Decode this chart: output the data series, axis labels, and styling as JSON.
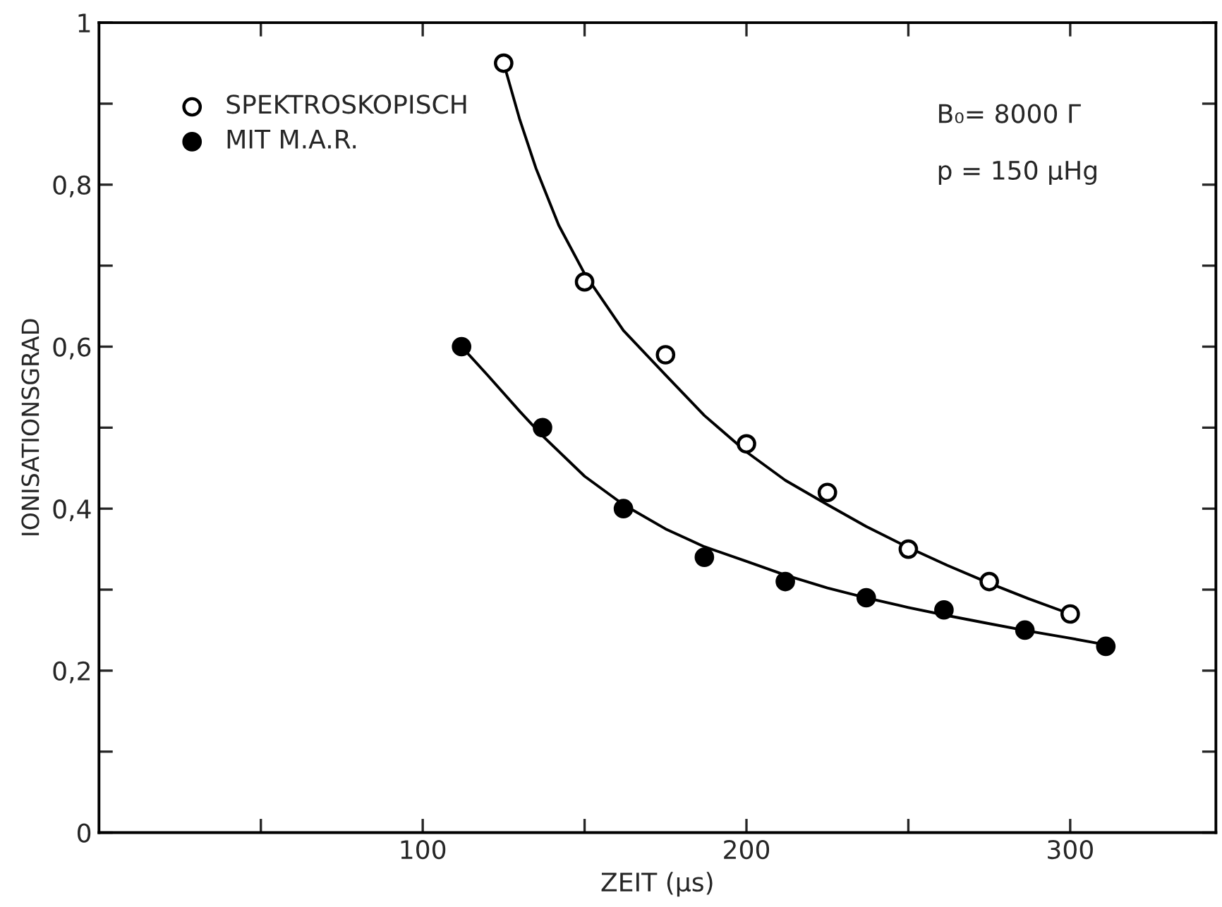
{
  "chart_data": {
    "type": "scatter",
    "xlabel": "ZEIT (μs)",
    "ylabel": "IONISATIONSGRAD",
    "xlim": [
      0,
      345
    ],
    "ylim": [
      0,
      1
    ],
    "xticks": [
      {
        "value": 50,
        "label": null
      },
      100,
      {
        "value": 150,
        "label": null
      },
      200,
      {
        "value": 250,
        "label": null
      },
      300
    ],
    "yticks": [
      {
        "value": 0,
        "label": "0"
      },
      {
        "value": 0.1,
        "label": null
      },
      {
        "value": 0.2,
        "label": "0,2"
      },
      {
        "value": 0.3,
        "label": null
      },
      {
        "value": 0.4,
        "label": "0,4"
      },
      {
        "value": 0.5,
        "label": null
      },
      {
        "value": 0.6,
        "label": "0,6"
      },
      {
        "value": 0.7,
        "label": null
      },
      {
        "value": 0.8,
        "label": "0,8"
      },
      {
        "value": 0.9,
        "label": null
      },
      {
        "value": 1,
        "label": "1"
      }
    ],
    "grid": false,
    "legend": "top left",
    "marker": "circle",
    "annotations": [
      "B₀= 8000 Γ",
      "p = 150 μHg"
    ],
    "series": [
      {
        "name": "SPEKTROSKOPISCH",
        "color": "#ffffff",
        "x": [
          125,
          150,
          175,
          200,
          225,
          250,
          275,
          300
        ],
        "values": [
          0.95,
          0.68,
          0.59,
          0.48,
          0.42,
          0.35,
          0.31,
          0.27
        ]
      },
      {
        "name": "MIT M.A.R.",
        "color": "#000000",
        "x": [
          112,
          137,
          162,
          187,
          212,
          237,
          261,
          286,
          311
        ],
        "values": [
          0.6,
          0.5,
          0.4,
          0.34,
          0.31,
          0.29,
          0.275,
          0.25,
          0.23
        ]
      },
      {
        "type": "line",
        "marker": "none",
        "color": "#000000",
        "x": [
          125,
          130,
          135,
          142,
          150,
          162,
          175,
          187,
          200,
          212,
          225,
          237,
          250,
          262,
          275,
          287,
          300
        ],
        "values": [
          0.95,
          0.88,
          0.82,
          0.75,
          0.69,
          0.62,
          0.565,
          0.515,
          0.47,
          0.435,
          0.405,
          0.378,
          0.352,
          0.33,
          0.308,
          0.289,
          0.27
        ]
      },
      {
        "type": "line",
        "marker": "none",
        "color": "#000000",
        "x": [
          112,
          120,
          130,
          137,
          150,
          162,
          175,
          187,
          200,
          212,
          225,
          237,
          250,
          262,
          275,
          287,
          300,
          311
        ],
        "values": [
          0.6,
          0.565,
          0.52,
          0.49,
          0.44,
          0.405,
          0.375,
          0.353,
          0.335,
          0.318,
          0.302,
          0.29,
          0.278,
          0.268,
          0.258,
          0.249,
          0.24,
          0.232
        ]
      }
    ]
  }
}
